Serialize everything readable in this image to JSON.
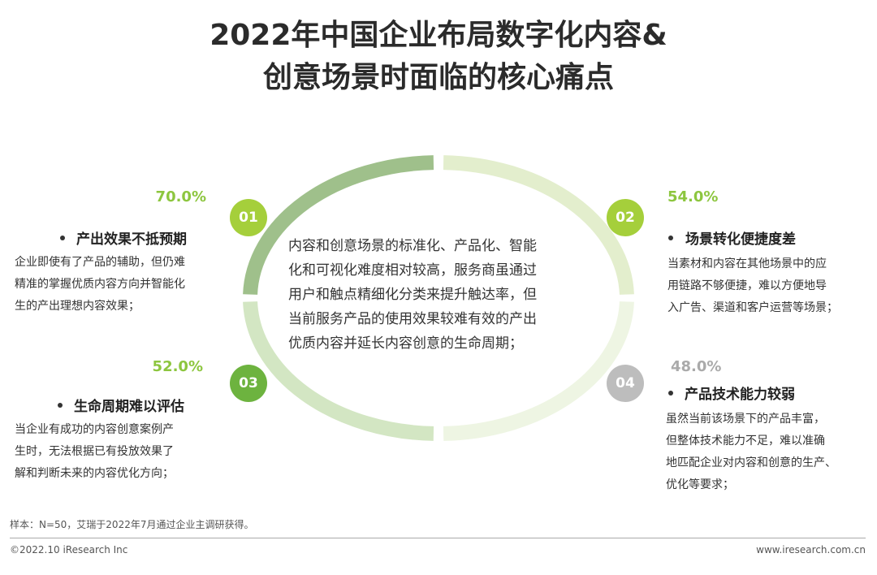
{
  "title": {
    "line1": "2022年中国企业布局数字化内容&",
    "line2": "创意场景时面临的核心痛点"
  },
  "center_text": [
    "内容和创意场景的标准化、产品化、智能",
    "化和可视化难度相对较高，服务商虽通过",
    "用户和触点精细化分类来提升触达率，但",
    "当前服务产品的使用效果较难有效的产出",
    "优质内容并延长内容创意的生命周期；"
  ],
  "items": [
    {
      "number": "01",
      "percent": "70.0%",
      "heading": "产出效果不抵预期",
      "description": [
        "企业即使有了产品的辅助，但仍难",
        "精准的掌握优质内容方向并智能化",
        "生的产出理想内容效果；"
      ]
    },
    {
      "number": "02",
      "percent": "54.0%",
      "heading": "场景转化便捷度差",
      "description": [
        "当素材和内容在其他场景中的应",
        "用链路不够便捷，难以方便地导",
        "入广告、渠道和客户运营等场景；"
      ]
    },
    {
      "number": "03",
      "percent": "52.0%",
      "heading": "生命周期难以评估",
      "description": [
        "当企业有成功的内容创意案例产",
        "生时，无法根据已有投放效果了",
        "解和判断未来的内容优化方向；"
      ]
    },
    {
      "number": "04",
      "percent": "48.0%",
      "heading": "产品技术能力较弱",
      "description": [
        "虽然当前该场景下的产品丰富，",
        "但整体技术能力不足，难以准确",
        "地匹配企业对内容和创意的生产、",
        "优化等要求；"
      ]
    }
  ],
  "footer": {
    "note": "样本：N=50，艾瑞于2022年7月通过企业主调研获得。",
    "copyright": "©2022.10 iResearch Inc",
    "website": "www.iresearch.com.cn"
  }
}
